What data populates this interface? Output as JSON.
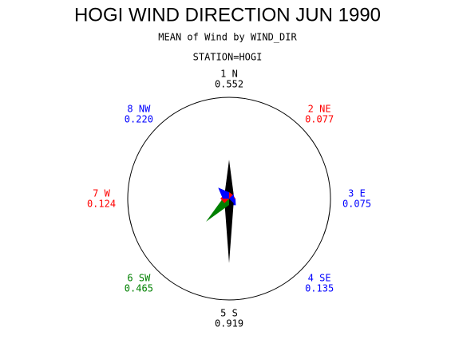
{
  "chart_data": {
    "type": "windrose",
    "title": "HOGI WIND DIRECTION JUN 1990",
    "subtitle": "MEAN of Wind by WIND_DIR",
    "station": "STATION=HOGI",
    "categories": [
      "1 N",
      "2 NE",
      "3 E",
      "4 SE",
      "5 S",
      "6 SW",
      "7 W",
      "8 NW"
    ],
    "values": [
      0.552,
      0.077,
      0.075,
      0.135,
      0.919,
      0.465,
      0.124,
      0.22
    ],
    "value_labels": [
      "0.552",
      "0.077",
      "0.075",
      "0.135",
      "0.919",
      "0.465",
      "0.124",
      "0.220"
    ],
    "colors": [
      "#000000",
      "#ff0000",
      "#0000ff",
      "#0000ff",
      "#000000",
      "#008000",
      "#ff0000",
      "#0000ff"
    ]
  }
}
